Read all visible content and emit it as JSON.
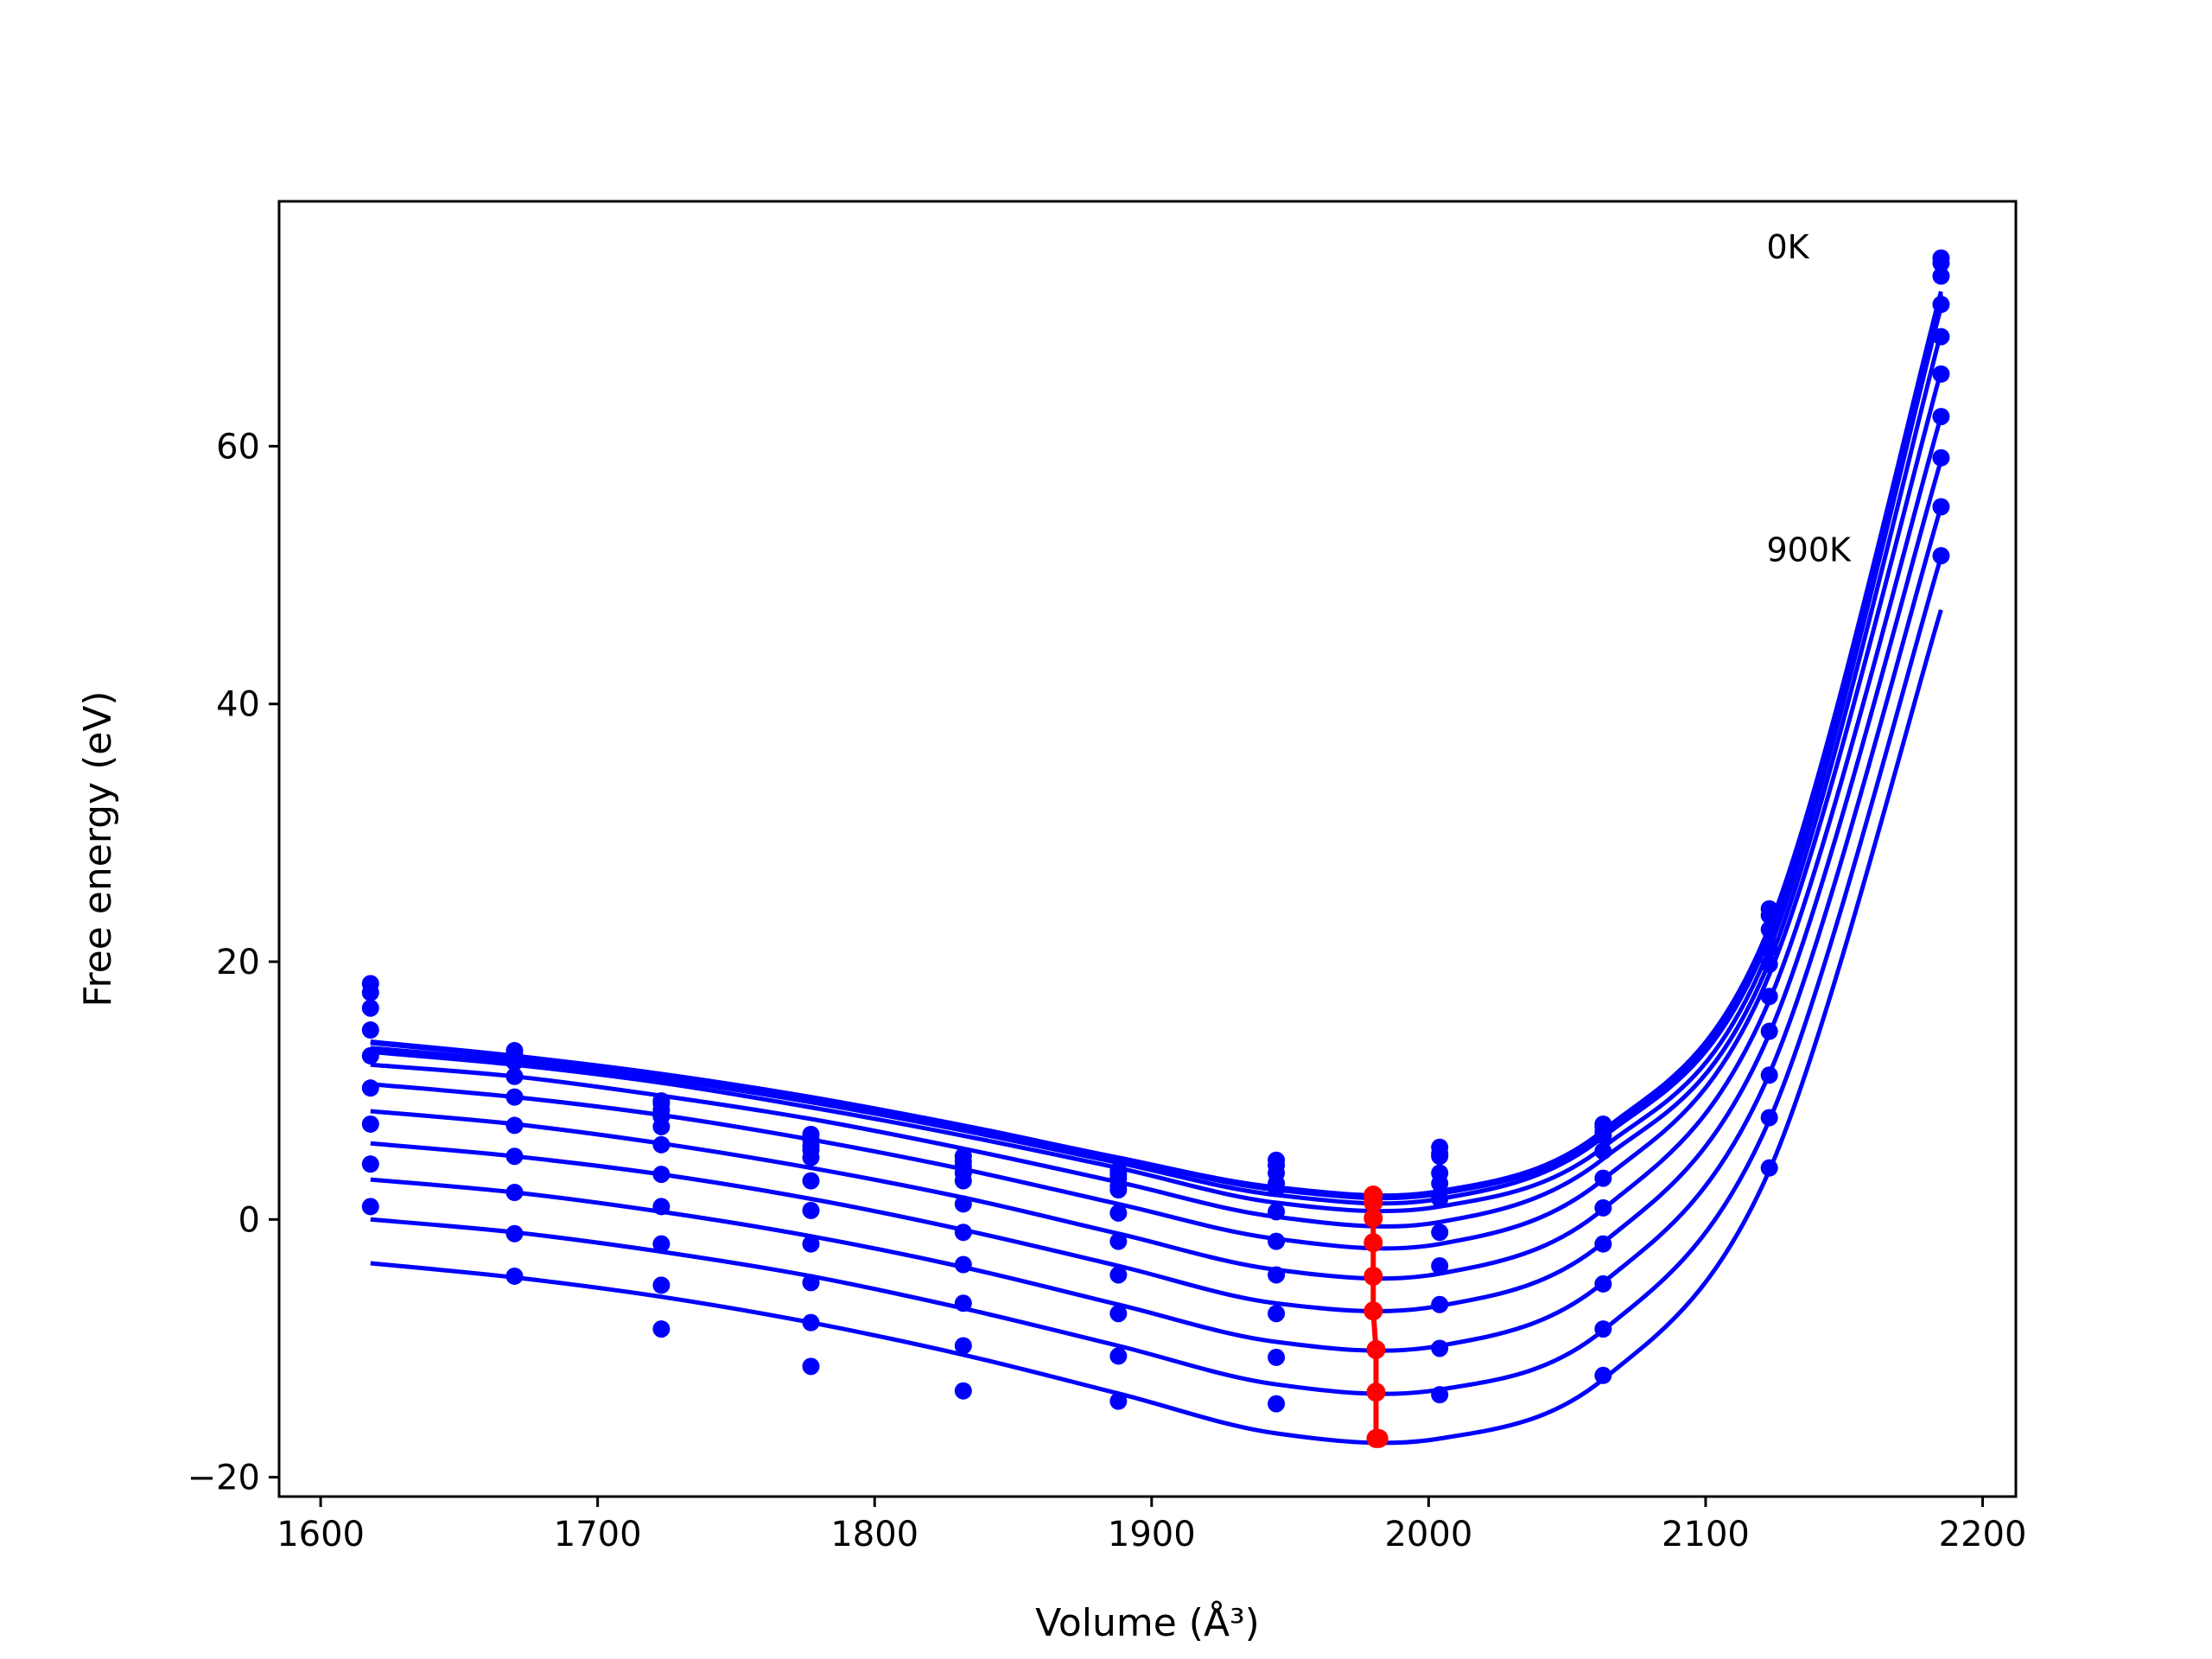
{
  "chart_data": {
    "type": "line",
    "xlabel": "Volume (Å³)",
    "ylabel": "Free energy (eV)",
    "xlim": [
      1585,
      2212
    ],
    "ylim": [
      -21.5,
      79
    ],
    "xticks": [
      1600,
      1700,
      1800,
      1900,
      2000,
      2100,
      2200
    ],
    "yticks": [
      -20,
      0,
      20,
      40,
      60
    ],
    "xtick_labels": [
      "1600",
      "1700",
      "1800",
      "1900",
      "2000",
      "2100",
      "2200"
    ],
    "ytick_labels": [
      "−20",
      "0",
      "20",
      "40",
      "60"
    ],
    "grid": false,
    "annotations": [
      {
        "text": "0K",
        "x": 2122,
        "y": 75.5
      },
      {
        "text": "900K",
        "x": 2122,
        "y": 52
      }
    ],
    "colors": {
      "curves": "#0000ff",
      "minima": "#ff0000"
    },
    "volumes": [
      1618,
      1670,
      1723,
      1777,
      1832,
      1888,
      1945,
      2004,
      2063,
      2123,
      2185
    ],
    "series": [
      {
        "points": [
          18.3,
          13.1,
          9.2,
          6.6,
          4.9,
          3.8,
          4.6,
          5.6,
          7.4,
          24.1,
          74.6
        ],
        "fit": [
          13.8,
          12.7,
          11.3,
          9.5,
          7.3,
          4.8,
          2.5,
          2.2,
          6.9,
          22.7,
          72.0
        ]
      },
      {
        "points": [
          17.6,
          12.8,
          9.0,
          6.2,
          4.5,
          3.5,
          4.2,
          5.1,
          7.2,
          23.6,
          74.2
        ],
        "fit": [
          13.7,
          12.6,
          11.2,
          9.4,
          7.2,
          4.7,
          2.3,
          2.0,
          6.7,
          22.4,
          71.8
        ]
      },
      {
        "points": [
          16.4,
          12.6,
          8.5,
          5.7,
          4.1,
          3.2,
          3.6,
          4.9,
          6.8,
          22.5,
          73.2
        ],
        "fit": [
          13.3,
          12.3,
          10.9,
          9.1,
          6.9,
          4.4,
          1.9,
          1.6,
          6.4,
          21.9,
          71.4
        ]
      },
      {
        "points": [
          14.7,
          12.2,
          8.0,
          5.4,
          3.6,
          2.6,
          2.8,
          3.6,
          6.5,
          21.4,
          71.0
        ],
        "fit": [
          13.0,
          12.0,
          10.6,
          8.7,
          6.5,
          4.0,
          1.3,
          1.0,
          5.6,
          21.0,
          70.8
        ]
      },
      {
        "points": [
          12.7,
          11.1,
          7.2,
          4.8,
          3.0,
          2.3,
          2.4,
          2.8,
          5.3,
          21.0,
          68.5
        ],
        "fit": [
          12.0,
          11.1,
          9.6,
          7.8,
          5.5,
          2.9,
          0.2,
          -0.2,
          4.7,
          20.0,
          68.8
        ]
      },
      {
        "points": [
          10.2,
          9.5,
          5.8,
          3.0,
          1.2,
          0.5,
          0.6,
          1.6,
          3.2,
          19.8,
          65.6
        ],
        "fit": [
          10.5,
          9.5,
          8.1,
          6.2,
          3.9,
          1.2,
          -1.5,
          -1.9,
          3.1,
          19.0,
          65.8
        ]
      },
      {
        "points": [
          7.4,
          7.3,
          3.5,
          0.7,
          -1.0,
          -1.7,
          -1.7,
          -1.0,
          0.9,
          17.3,
          62.3
        ],
        "fit": [
          8.4,
          7.4,
          5.9,
          4.0,
          1.7,
          -1.1,
          -3.9,
          -4.2,
          0.8,
          17.0,
          62.3
        ]
      },
      {
        "points": [
          4.3,
          4.9,
          1.0,
          -1.9,
          -3.5,
          -4.3,
          -4.3,
          -3.6,
          -1.9,
          14.6,
          59.1
        ],
        "fit": [
          5.9,
          4.9,
          3.5,
          1.6,
          -0.8,
          -3.6,
          -6.5,
          -6.7,
          -1.8,
          14.4,
          58.9
        ]
      },
      {
        "points": [
          1.0,
          2.1,
          -1.9,
          -4.9,
          -6.5,
          -7.3,
          -7.3,
          -6.6,
          -5.0,
          11.2,
          55.3
        ],
        "fit": [
          3.1,
          2.1,
          0.6,
          -1.3,
          -3.7,
          -6.6,
          -9.5,
          -9.8,
          -4.9,
          11.3,
          55.3
        ]
      },
      {
        "points": [
          null,
          -1.1,
          -5.1,
          -8.0,
          -9.8,
          -10.6,
          -10.7,
          -10.0,
          -8.5,
          7.9,
          51.5
        ],
        "fit": [
          0.0,
          -1.0,
          -2.5,
          -4.4,
          -6.9,
          -9.8,
          -12.8,
          -13.2,
          -8.6,
          7.7,
          51.4
        ]
      },
      {
        "points": [
          null,
          -4.4,
          -8.5,
          -11.4,
          -13.3,
          -14.1,
          -14.3,
          -13.6,
          -12.1,
          4.0,
          null
        ],
        "fit": [
          -3.4,
          -4.5,
          -6.0,
          -8.0,
          -10.5,
          -13.5,
          -16.6,
          -17.0,
          -12.4,
          3.8,
          47.3
        ]
      }
    ],
    "minima": {
      "x": [
        1980,
        1980,
        1980,
        1980,
        1980,
        1980,
        1981,
        1981,
        1981,
        1982
      ],
      "y": [
        1.9,
        1.3,
        0.1,
        -1.8,
        -4.4,
        -7.1,
        -10.1,
        -13.4,
        -17.0,
        -17.0
      ]
    }
  }
}
